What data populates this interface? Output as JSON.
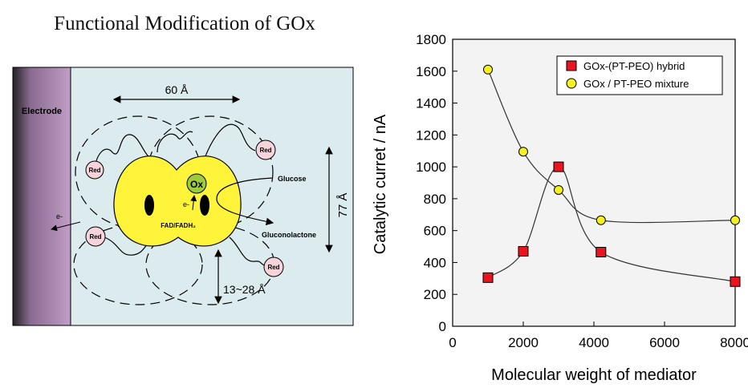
{
  "page_title": "Functional Modification of GOx",
  "diagram": {
    "electrode_label": "Electrode",
    "width_label": "60 Å",
    "height_label": "77 Å",
    "distance_label": "13~28 Å",
    "ox_label": "Ox",
    "red_label": "Red",
    "electron_label": "e-",
    "glucose_label": "Glucose",
    "gluconolactone_label": "Gluconolactone",
    "cofactor_label": "FAD/FADH₂",
    "colors": {
      "background": "#dcecee",
      "electrode": "#c09ec6",
      "enzyme": "#fff43a",
      "ox": "#9ccc3c",
      "red": "#f7d3dc"
    }
  },
  "chart_data": {
    "type": "scatter",
    "xlabel": "Molecular weight of mediator",
    "ylabel": "Catalytic curret / nA",
    "xlim": [
      0,
      8000
    ],
    "ylim": [
      0,
      1800
    ],
    "xticks": [
      "0",
      "2000",
      "4000",
      "6000",
      "8000"
    ],
    "yticks": [
      "0",
      "200",
      "400",
      "600",
      "800",
      "1000",
      "1200",
      "1400",
      "1600",
      "1800"
    ],
    "legend_position": "top-right",
    "series": [
      {
        "name": "GOx-(PT-PEO) hybrid",
        "marker": "square",
        "color": "#e8141e",
        "points": [
          [
            1000,
            305
          ],
          [
            2000,
            470
          ],
          [
            3000,
            1000
          ],
          [
            4200,
            465
          ],
          [
            8000,
            280
          ]
        ]
      },
      {
        "name": "GOx / PT-PEO mixture",
        "marker": "circle",
        "color": "#f5f020",
        "points": [
          [
            1000,
            1610
          ],
          [
            2000,
            1095
          ],
          [
            3000,
            855
          ],
          [
            4200,
            665
          ],
          [
            8000,
            665
          ]
        ]
      }
    ]
  }
}
